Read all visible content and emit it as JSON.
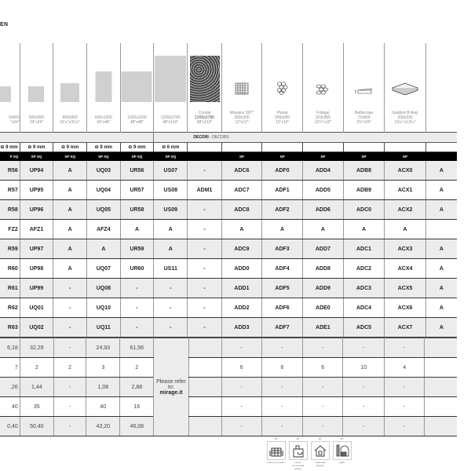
{
  "header": {
    "title": "EN"
  },
  "columns": [
    {
      "name": "",
      "size_mm": "0x600",
      "size_in": "\"x24\"",
      "image": "plain-tile"
    },
    {
      "name": "",
      "size_mm": "600x600",
      "size_in": "24\"x24\"",
      "image": "plain-tile"
    },
    {
      "name": "",
      "size_mm": "800x800",
      "size_in": "31½\"x31½\"",
      "image": "plain-tile"
    },
    {
      "name": "",
      "size_mm": "600x1200",
      "size_in": "24\"x48\"",
      "image": "plain-tile"
    },
    {
      "name": "",
      "size_mm": "1200x1200",
      "size_in": "48\"x48\"",
      "image": "plain-tile"
    },
    {
      "name": "",
      "size_mm": "1200x2780",
      "size_in": "48\"x110\"",
      "image": "plain-tile"
    },
    {
      "name": "Crystal",
      "size_mm": "1200x2780",
      "size_in": "48\"x110\"",
      "image": "crystal-texture"
    },
    {
      "name": "Mosaico 36T*",
      "size_mm": "300x300",
      "size_in": "12\"x12\"",
      "image": "mosaic-grid-icon"
    },
    {
      "name": "Plume",
      "size_mm": "300x300",
      "size_in": "12\"x12\"",
      "image": "hexagon-pattern-icon"
    },
    {
      "name": "Foliage",
      "size_mm": "323x305",
      "size_in": "12¾\"x12\"",
      "image": "leaf-pattern-icon"
    },
    {
      "name": "Battiscopa",
      "size_mm": "72x600",
      "size_in": "2¾\"x24\"",
      "image": "skirting-icon"
    },
    {
      "name": "Gradino B Ang.",
      "size_mm": "330x330",
      "size_in": "13⅕\"x13⅕\"",
      "image": "step-icon"
    },
    {
      "name": "",
      "size_mm": "",
      "size_in": "",
      "image": ""
    }
  ],
  "band": {
    "decori_label": "DECORI",
    "decors_label": " - DECORS"
  },
  "thickness": [
    "9 mm",
    "9 mm",
    "9 mm",
    "9 mm",
    "9 mm",
    "6 mm",
    "",
    "",
    "",
    "",
    "",
    "",
    ""
  ],
  "finish": [
    "P SQ",
    "SP SQ",
    "SP SQ",
    "SP SQ",
    "SP SQ",
    "SP SQ",
    "",
    "SP",
    "SP",
    "SP",
    "SP",
    "SP",
    ""
  ],
  "codes": [
    [
      "R56",
      "UP94",
      "A",
      "UQ03",
      "UR56",
      "US07",
      "-",
      "ADC6",
      "ADF0",
      "ADD4",
      "ADB8",
      "ACX0",
      "A"
    ],
    [
      "R57",
      "UP95",
      "A",
      "UQ04",
      "UR57",
      "US08",
      "ADM1",
      "ADC7",
      "ADF1",
      "ADD5",
      "ADB9",
      "ACX1",
      "A"
    ],
    [
      "R58",
      "UP96",
      "A",
      "UQ05",
      "UR58",
      "US09",
      "-",
      "ADC8",
      "ADF2",
      "ADD6",
      "ADC0",
      "ACX2",
      "A"
    ],
    [
      "FZ2",
      "AFZ1",
      "A",
      "AFZ4",
      "A",
      "A",
      "-",
      "A",
      "A",
      "A",
      "A",
      "A",
      ""
    ],
    [
      "R59",
      "UP97",
      "A",
      "A",
      "UR59",
      "A",
      "-",
      "ADC9",
      "ADF3",
      "ADD7",
      "ADC1",
      "ACX3",
      "A"
    ],
    [
      "R60",
      "UP98",
      "A",
      "UQ07",
      "UR60",
      "US11",
      "-",
      "ADD0",
      "ADF4",
      "ADD8",
      "ADC2",
      "ACX4",
      "A"
    ],
    [
      "R61",
      "UP99",
      "-",
      "UQ08",
      "-",
      "-",
      "-",
      "ADD1",
      "ADF5",
      "ADD9",
      "ADC3",
      "ACX5",
      "A"
    ],
    [
      "R62",
      "UQ01",
      "-",
      "UQ10",
      "-",
      "-",
      "-",
      "ADD2",
      "ADF6",
      "ADE0",
      "ADC4",
      "ACX6",
      "A"
    ],
    [
      "R63",
      "UQ02",
      "-",
      "UQ11",
      "-",
      "-",
      "-",
      "ADD3",
      "ADF7",
      "ADE1",
      "ADC5",
      "ACX7",
      "A"
    ]
  ],
  "packaging": [
    [
      "6,18",
      "32,29",
      "-",
      "24,93",
      "61,56",
      "",
      "-",
      "-",
      "-",
      "-",
      "-",
      ""
    ],
    [
      "7",
      "2",
      "2",
      "3",
      "2",
      "",
      "6",
      "6",
      "6",
      "10",
      "4",
      ""
    ],
    [
      ",26",
      "1,44",
      "-",
      "1,08",
      "2,88",
      "",
      "-",
      "-",
      "-",
      "-",
      "-",
      ""
    ],
    [
      "40",
      "35",
      "-",
      "40",
      "16",
      "",
      "-",
      "-",
      "-",
      "-",
      "-",
      ""
    ],
    [
      "0,40",
      "50,40",
      "-",
      "43,20",
      "46,08",
      "",
      "-",
      "-",
      "-",
      "-",
      "-",
      ""
    ]
  ],
  "refer": {
    "text": "Please refer to:",
    "link": "mirage.it"
  },
  "usage_icons": [
    {
      "badge": "SP",
      "label": "heavy foot traffic",
      "icon": "heavy-traffic-icon"
    },
    {
      "badge": "SP",
      "label": "indoor commercial setting",
      "icon": "shopping-bag-icon"
    },
    {
      "badge": "SP",
      "label": "residential settings",
      "icon": "house-icon"
    },
    {
      "badge": "SP",
      "label": "walls",
      "icon": "wall-icon"
    }
  ]
}
